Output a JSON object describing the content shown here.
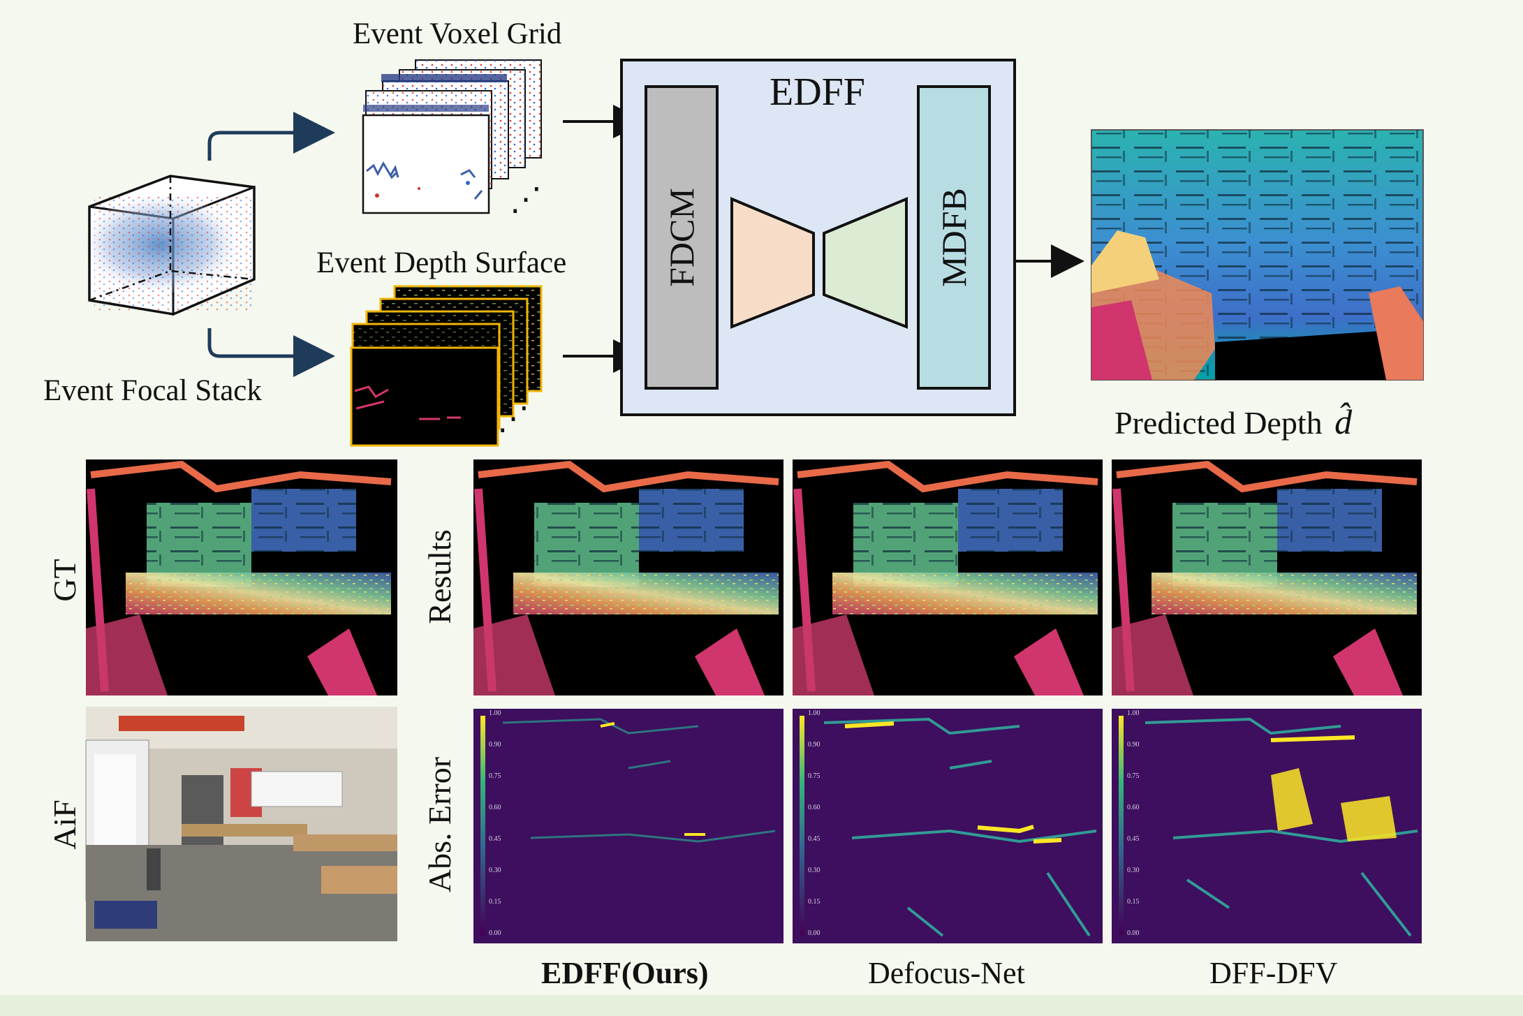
{
  "top": {
    "voxel_grid_label": "Event Voxel Grid",
    "depth_surface_label": "Event Depth Surface",
    "focal_stack_label": "Event Focal Stack",
    "edff_title": "EDFF",
    "fdcm_label": "FDCM",
    "mdfb_label": "MDFB",
    "predicted_label": "Predicted Depth",
    "predicted_symbol": "d̂",
    "ellipsis": "⋰"
  },
  "rows": {
    "gt_label": "GT",
    "aif_label": "AiF",
    "results_label": "Results",
    "abs_error_label": "Abs. Error"
  },
  "methods": [
    "EDFF(Ours)",
    "Defocus-Net",
    "DFF-DFV"
  ],
  "colorbar_ticks": [
    "1.00",
    "0.90",
    "0.75",
    "0.60",
    "0.45",
    "0.30",
    "0.15",
    "0.00"
  ],
  "colors": {
    "edff_bg": "#dce6f4",
    "fdcm_fill": "#bdbdbd",
    "mdfb_fill": "#b7dde3",
    "encoder_fill": "#f7dcc8",
    "decoder_fill": "#dcebd4",
    "arrow_dark": "#1f3b5a",
    "surface_border": "#f4b400",
    "error_bg": "#3d0f5e"
  }
}
